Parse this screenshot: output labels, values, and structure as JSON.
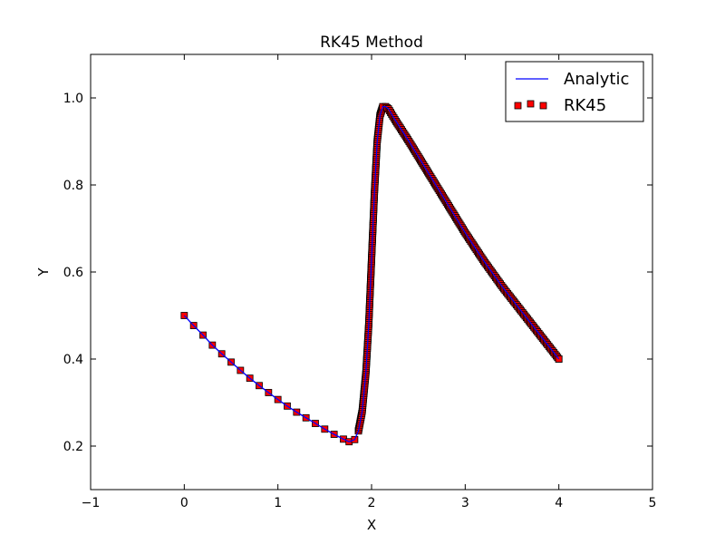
{
  "chart_data": {
    "type": "line",
    "title": "RK45 Method",
    "xlabel": "X",
    "ylabel": "Y",
    "xlim": [
      -1,
      5
    ],
    "ylim": [
      0.1,
      1.1
    ],
    "xticks": [
      -1,
      0,
      1,
      2,
      3,
      4,
      5
    ],
    "xtick_labels": [
      "−1",
      "0",
      "1",
      "2",
      "3",
      "4",
      "5"
    ],
    "yticks": [
      0.2,
      0.4,
      0.6,
      0.8,
      1.0
    ],
    "ytick_labels": [
      "0.2",
      "0.4",
      "0.6",
      "0.8",
      "1.0"
    ],
    "grid": false,
    "legend_position": "top-right",
    "series": [
      {
        "name": "Analytic",
        "style": "line",
        "color": "#0000ff",
        "x": [
          0.0,
          0.1,
          0.2,
          0.3,
          0.4,
          0.5,
          0.6,
          0.7,
          0.8,
          0.9,
          1.0,
          1.1,
          1.2,
          1.3,
          1.4,
          1.5,
          1.6,
          1.7,
          1.76,
          1.82,
          1.86,
          1.9,
          1.94,
          1.97,
          2.0,
          2.03,
          2.06,
          2.09,
          2.12,
          2.15,
          2.18,
          2.25,
          2.4,
          2.6,
          2.8,
          3.0,
          3.2,
          3.4,
          3.6,
          3.8,
          4.0
        ],
        "y": [
          0.5,
          0.477,
          0.455,
          0.432,
          0.412,
          0.393,
          0.374,
          0.356,
          0.339,
          0.323,
          0.307,
          0.292,
          0.278,
          0.265,
          0.252,
          0.239,
          0.227,
          0.216,
          0.21,
          0.215,
          0.235,
          0.28,
          0.37,
          0.48,
          0.63,
          0.78,
          0.9,
          0.96,
          0.98,
          0.98,
          0.975,
          0.95,
          0.9,
          0.83,
          0.76,
          0.69,
          0.625,
          0.565,
          0.51,
          0.455,
          0.4
        ]
      },
      {
        "name": "RK45",
        "style": "marker",
        "marker": "square",
        "color": "#ff0000",
        "edge_color": "#000000",
        "x": [
          0.0,
          0.1,
          0.2,
          0.3,
          0.4,
          0.5,
          0.6,
          0.7,
          0.8,
          0.9,
          1.0,
          1.1,
          1.2,
          1.3,
          1.4,
          1.5,
          1.6,
          1.7,
          1.76,
          1.82,
          1.86,
          1.9,
          1.94,
          1.97,
          2.0,
          2.03,
          2.06,
          2.09,
          2.12,
          2.15,
          2.18,
          2.25,
          2.4,
          2.6,
          2.8,
          3.0,
          3.2,
          3.4,
          3.6,
          3.8,
          4.0
        ],
        "y": [
          0.5,
          0.477,
          0.455,
          0.432,
          0.412,
          0.393,
          0.374,
          0.356,
          0.339,
          0.323,
          0.307,
          0.292,
          0.278,
          0.265,
          0.252,
          0.239,
          0.227,
          0.216,
          0.21,
          0.215,
          0.235,
          0.28,
          0.37,
          0.48,
          0.63,
          0.78,
          0.9,
          0.96,
          0.98,
          0.98,
          0.975,
          0.95,
          0.9,
          0.83,
          0.76,
          0.69,
          0.625,
          0.565,
          0.51,
          0.455,
          0.4
        ]
      }
    ]
  }
}
